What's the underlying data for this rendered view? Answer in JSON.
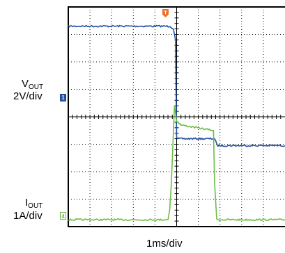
{
  "labels": {
    "ch1_name_base": "V",
    "ch1_name_sub": "OUT",
    "ch1_scale": "2V/div",
    "ch4_name_base": "I",
    "ch4_name_sub": "OUT",
    "ch4_scale": "1A/div",
    "timebase": "1ms/div"
  },
  "markers": {
    "trigger": "T",
    "ch1": "1",
    "ch4": "4"
  },
  "colors": {
    "ch1": "#1f4ea3",
    "ch4": "#6cbd45",
    "trigger_marker": "#e8742a",
    "grid": "#000000",
    "background": "#ffffff"
  },
  "chart_data": {
    "type": "line",
    "xlabel": "1ms/div",
    "x_unit": "div",
    "y_unit": "div",
    "grid": true,
    "xlim": [
      0,
      10
    ],
    "ylim": [
      0,
      8
    ],
    "series": [
      {
        "name": "VOUT",
        "scale": "2V/div",
        "x": [
          0,
          4.7,
          4.85,
          4.95,
          5.0,
          5.05,
          6.75,
          6.8,
          6.85,
          6.9,
          10
        ],
        "y": [
          7.3,
          7.3,
          7.2,
          6.8,
          3.25,
          3.2,
          3.2,
          3.1,
          3.0,
          2.95,
          2.95
        ]
      },
      {
        "name": "IOUT",
        "scale": "1A/div",
        "x": [
          0,
          4.6,
          4.68,
          4.75,
          4.85,
          4.9,
          5.0,
          5.2,
          6.7,
          6.75,
          6.85,
          10
        ],
        "y": [
          0.25,
          0.25,
          0.6,
          1.5,
          3.4,
          4.4,
          3.85,
          3.7,
          3.5,
          1.6,
          0.25,
          0.25
        ]
      }
    ]
  }
}
